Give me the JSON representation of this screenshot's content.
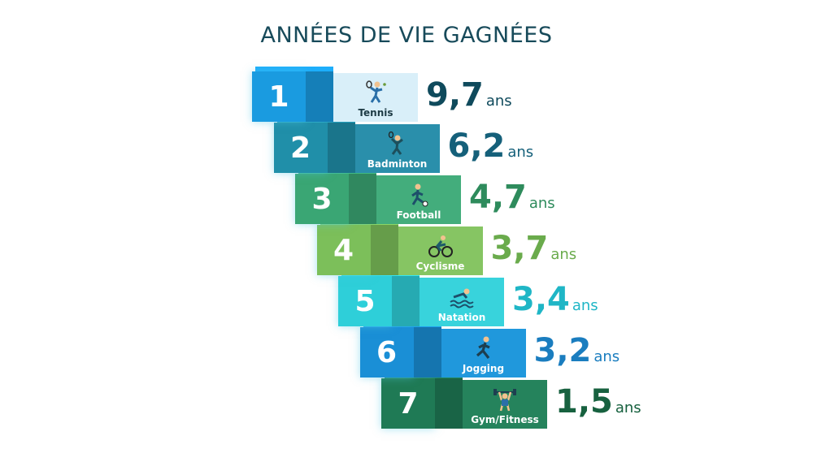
{
  "title": "ANNÉES DE VIE GAGNÉES",
  "chart_data": {
    "type": "bar",
    "title": "ANNÉES DE VIE GAGNÉES",
    "unit": "ans",
    "items": [
      {
        "rank": "1",
        "sport": "Tennis",
        "value": "9,7",
        "icon": "tennis-player-icon",
        "color": "#1a9be0",
        "label_bg": "#d9eff9",
        "label_color": "#1d3a44",
        "value_color": "#0f4a5c"
      },
      {
        "rank": "2",
        "sport": "Badminton",
        "value": "6,2",
        "icon": "badminton-player-icon",
        "color": "#208fa9",
        "label_bg": "#2a8fab",
        "label_color": "#ffffff",
        "value_color": "#15607a"
      },
      {
        "rank": "3",
        "sport": "Football",
        "value": "4,7",
        "icon": "football-player-icon",
        "color": "#3aa674",
        "label_bg": "#43ad7c",
        "label_color": "#ffffff",
        "value_color": "#2e8b5c"
      },
      {
        "rank": "4",
        "sport": "Cyclisme",
        "value": "3,7",
        "icon": "cyclist-icon",
        "color": "#7cbf5a",
        "label_bg": "#86c563",
        "label_color": "#ffffff",
        "value_color": "#6aab4c"
      },
      {
        "rank": "5",
        "sport": "Natation",
        "value": "3,4",
        "icon": "swimmer-icon",
        "color": "#2ecfd9",
        "label_bg": "#38d3dc",
        "label_color": "#ffffff",
        "value_color": "#1fb6c6"
      },
      {
        "rank": "6",
        "sport": "Jogging",
        "value": "3,2",
        "icon": "runner-icon",
        "color": "#1a8fd6",
        "label_bg": "#2098dc",
        "label_color": "#ffffff",
        "value_color": "#1a7dbf"
      },
      {
        "rank": "7",
        "sport": "Gym/Fitness",
        "value": "1,5",
        "icon": "weightlifter-icon",
        "color": "#1f7a55",
        "label_bg": "#25835c",
        "label_color": "#ffffff",
        "value_color": "#17613f"
      }
    ]
  }
}
